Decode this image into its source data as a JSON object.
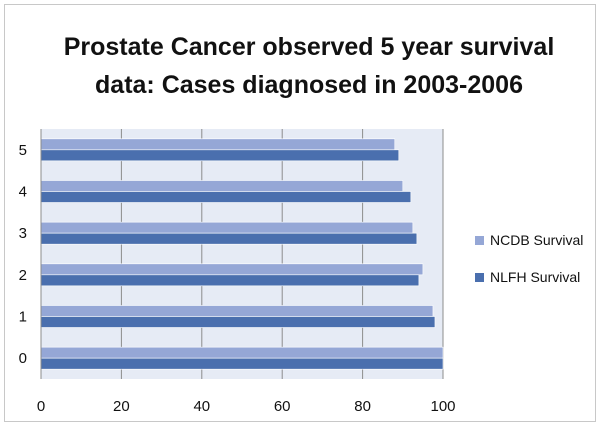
{
  "chart_data": {
    "type": "bar",
    "orientation": "horizontal",
    "title": [
      "Prostate Cancer observed 5 year survival",
      "data: Cases diagnosed in 2003-2006"
    ],
    "categories": [
      "0",
      "1",
      "2",
      "3",
      "4",
      "5"
    ],
    "series": [
      {
        "name": "NCDB Survival",
        "values": [
          100,
          97.5,
          95,
          92.5,
          90,
          88
        ],
        "color": "#95a7d6"
      },
      {
        "name": "NLFH Survival",
        "values": [
          100,
          98,
          94,
          93.5,
          92,
          89
        ],
        "color": "#4a6fae"
      }
    ],
    "xlim": [
      0,
      100
    ],
    "xticks": [
      "0",
      "20",
      "40",
      "60",
      "80",
      "100"
    ],
    "grid": true,
    "plot_background": "#e6ebf5",
    "legend_position": "right"
  }
}
